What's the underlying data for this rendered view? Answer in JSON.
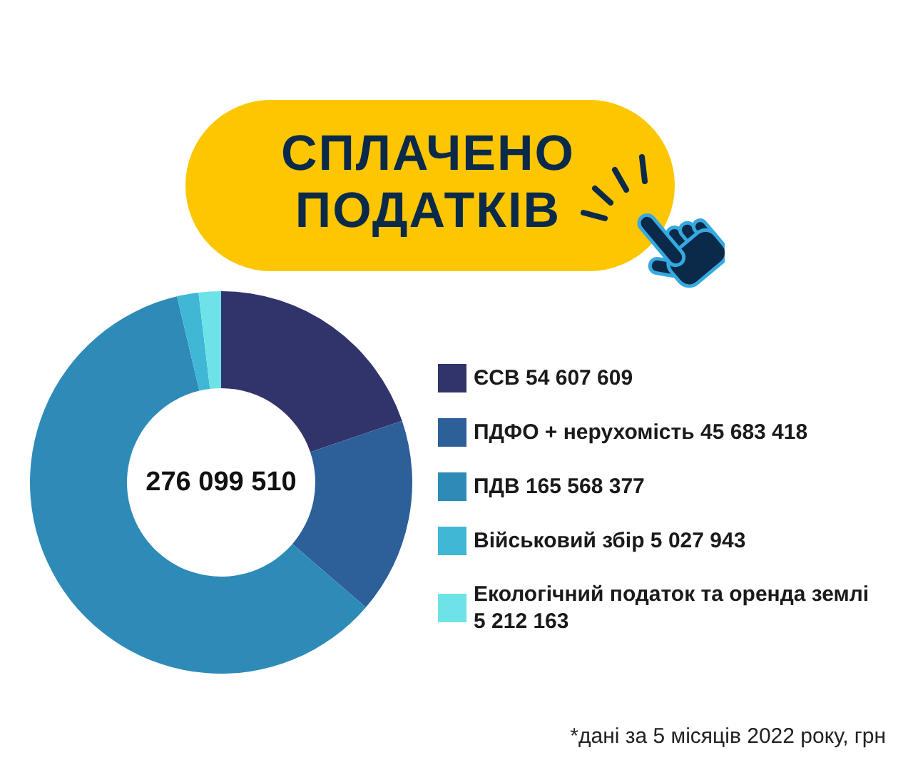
{
  "chart_data": {
    "type": "donut",
    "title": "СПЛАЧЕНО ПОДАТКІВ",
    "categories": [
      "ЄСВ",
      "ПДФО + нерухомість",
      "ПДВ",
      "Військовий збір",
      "Екологічний податок та оренда землі"
    ],
    "values": [
      54607609,
      45683418,
      165568377,
      5027943,
      5212163
    ],
    "value_labels": [
      "54 607 609",
      "45 683 418",
      "165 568 377",
      "5 027 943",
      "5 212 163"
    ],
    "colors": [
      "#31346b",
      "#2d5f99",
      "#2e8bb8",
      "#3fb7d5",
      "#6de3e8"
    ],
    "totals": [
      "276 099 510"
    ],
    "legend": "right",
    "annotations": [
      "*дані за 5 місяців 2022 року, грн"
    ]
  }
}
